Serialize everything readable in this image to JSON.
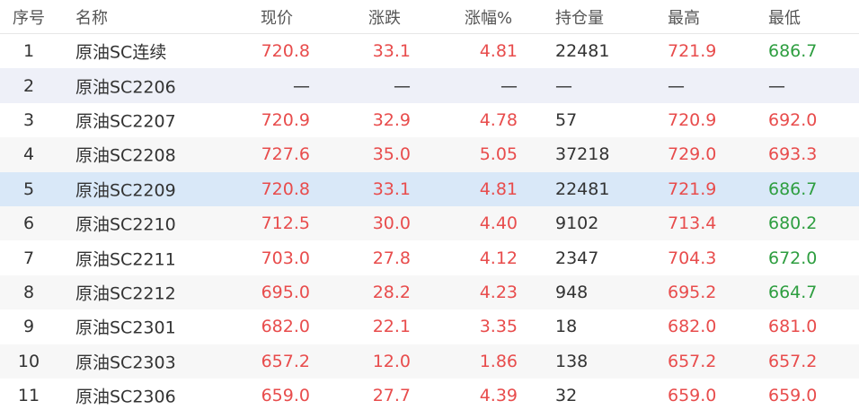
{
  "headers": {
    "idx": "序号",
    "name": "名称",
    "price": "现价",
    "chg": "涨跌",
    "pct": "涨幅%",
    "oi": "持仓量",
    "hi": "最高",
    "lo": "最低"
  },
  "colors": {
    "up": "#e84c4c",
    "down": "#2e9e40",
    "selected_row": "#d9e8f8"
  },
  "selected_index": 5,
  "rows": [
    {
      "idx": "1",
      "name": "原油SC连续",
      "price": "720.8",
      "chg": "33.1",
      "pct": "4.81",
      "oi": "22481",
      "hi": "721.9",
      "lo": "686.7",
      "lo_dir": "dn"
    },
    {
      "idx": "2",
      "name": "原油SC2206",
      "price": "—",
      "chg": "—",
      "pct": "—",
      "oi": "—",
      "hi": "—",
      "lo": "—",
      "lo_dir": "flat"
    },
    {
      "idx": "3",
      "name": "原油SC2207",
      "price": "720.9",
      "chg": "32.9",
      "pct": "4.78",
      "oi": "57",
      "hi": "720.9",
      "lo": "692.0",
      "lo_dir": "up"
    },
    {
      "idx": "4",
      "name": "原油SC2208",
      "price": "727.6",
      "chg": "35.0",
      "pct": "5.05",
      "oi": "37218",
      "hi": "729.0",
      "lo": "693.3",
      "lo_dir": "up"
    },
    {
      "idx": "5",
      "name": "原油SC2209",
      "price": "720.8",
      "chg": "33.1",
      "pct": "4.81",
      "oi": "22481",
      "hi": "721.9",
      "lo": "686.7",
      "lo_dir": "dn"
    },
    {
      "idx": "6",
      "name": "原油SC2210",
      "price": "712.5",
      "chg": "30.0",
      "pct": "4.40",
      "oi": "9102",
      "hi": "713.4",
      "lo": "680.2",
      "lo_dir": "dn"
    },
    {
      "idx": "7",
      "name": "原油SC2211",
      "price": "703.0",
      "chg": "27.8",
      "pct": "4.12",
      "oi": "2347",
      "hi": "704.3",
      "lo": "672.0",
      "lo_dir": "dn"
    },
    {
      "idx": "8",
      "name": "原油SC2212",
      "price": "695.0",
      "chg": "28.2",
      "pct": "4.23",
      "oi": "948",
      "hi": "695.2",
      "lo": "664.7",
      "lo_dir": "dn"
    },
    {
      "idx": "9",
      "name": "原油SC2301",
      "price": "682.0",
      "chg": "22.1",
      "pct": "3.35",
      "oi": "18",
      "hi": "682.0",
      "lo": "681.0",
      "lo_dir": "up"
    },
    {
      "idx": "10",
      "name": "原油SC2303",
      "price": "657.2",
      "chg": "12.0",
      "pct": "1.86",
      "oi": "138",
      "hi": "657.2",
      "lo": "657.2",
      "lo_dir": "up"
    },
    {
      "idx": "11",
      "name": "原油SC2306",
      "price": "659.0",
      "chg": "27.7",
      "pct": "4.39",
      "oi": "32",
      "hi": "659.0",
      "lo": "659.0",
      "lo_dir": "up"
    }
  ]
}
